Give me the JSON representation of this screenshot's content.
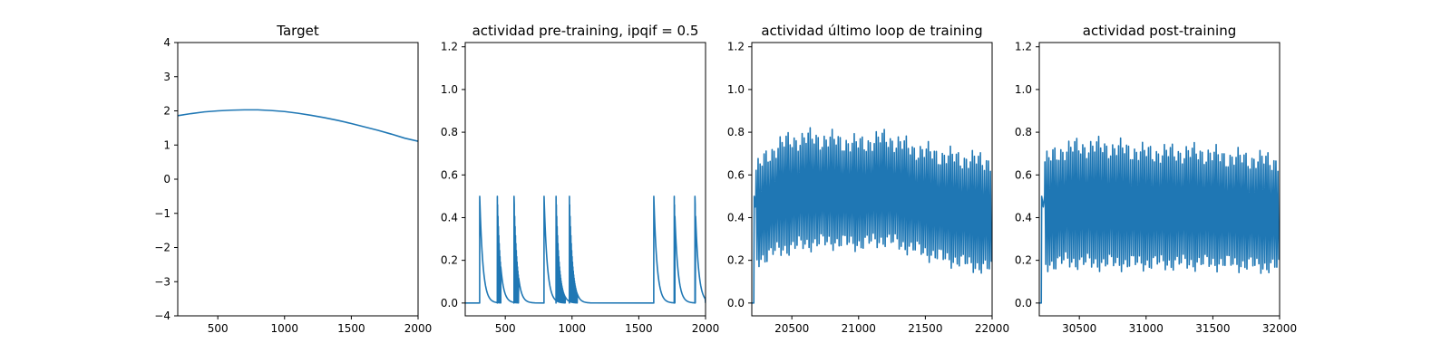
{
  "figure": {
    "line_color": "#1f77b4",
    "axes_color": "#000000"
  },
  "chart_data": [
    {
      "type": "line",
      "title": "Target",
      "xlabel": "",
      "ylabel": "",
      "xlim": [
        200,
        2000
      ],
      "ylim": [
        -4,
        4
      ],
      "xticks": [
        500,
        1000,
        1500,
        2000
      ],
      "yticks": [
        -4,
        -3,
        -2,
        -1,
        0,
        1,
        2,
        3,
        4
      ],
      "grid": false,
      "series": [
        {
          "x": [
            200,
            300,
            400,
            500,
            600,
            700,
            750,
            800,
            900,
            1000,
            1100,
            1200,
            1300,
            1400,
            1500,
            1600,
            1700,
            1800,
            1900,
            2000
          ],
          "y": [
            1.86,
            1.92,
            1.97,
            2.0,
            2.02,
            2.03,
            2.03,
            2.03,
            2.01,
            1.98,
            1.93,
            1.87,
            1.8,
            1.72,
            1.63,
            1.53,
            1.43,
            1.32,
            1.2,
            1.11
          ]
        }
      ]
    },
    {
      "type": "line",
      "title": "actividad pre-training, ipqif = 0.5",
      "xlabel": "",
      "ylabel": "",
      "xlim": [
        200,
        2000
      ],
      "ylim": [
        -0.06,
        1.22
      ],
      "xticks": [
        500,
        1000,
        1500,
        2000
      ],
      "yticks": [
        0.0,
        0.2,
        0.4,
        0.6,
        0.8,
        1.0,
        1.2
      ],
      "grid": false,
      "series": [
        {
          "spike_times": [
            308,
            440,
            565,
            790,
            880,
            980,
            1612,
            1765,
            1920
          ],
          "spike_peak": 0.5,
          "decay": 24,
          "baseline": 0.0
        }
      ]
    },
    {
      "type": "line",
      "title": "actividad último loop de training",
      "xlabel": "",
      "ylabel": "",
      "xlim": [
        20200,
        22000
      ],
      "ylim": [
        -0.06,
        1.22
      ],
      "xticks": [
        20500,
        21000,
        21500,
        22000
      ],
      "yticks": [
        0.0,
        0.2,
        0.4,
        0.6,
        0.8,
        1.0,
        1.2
      ],
      "grid": false,
      "series": [
        {
          "oscillation_start": 20230,
          "oscillation_end": 22000,
          "cycles": 118,
          "lead_in": [
            [
              20200,
              0.0
            ],
            [
              20215,
              0.0
            ],
            [
              20218,
              0.5
            ],
            [
              20225,
              0.45
            ],
            [
              20230,
              0.5
            ]
          ],
          "envelope_x": [
            20230,
            20400,
            20600,
            20800,
            21000,
            21200,
            21400,
            21600,
            21800,
            22000
          ],
          "envelope_max": [
            0.62,
            0.74,
            0.77,
            0.76,
            0.74,
            0.77,
            0.72,
            0.69,
            0.67,
            0.66
          ],
          "envelope_min": [
            0.2,
            0.25,
            0.28,
            0.29,
            0.28,
            0.3,
            0.26,
            0.22,
            0.19,
            0.16
          ]
        }
      ]
    },
    {
      "type": "line",
      "title": "actividad post-training",
      "xlabel": "",
      "ylabel": "",
      "xlim": [
        30200,
        32000
      ],
      "ylim": [
        -0.06,
        1.22
      ],
      "xticks": [
        30500,
        31000,
        31500,
        32000
      ],
      "yticks": [
        0.0,
        0.2,
        0.4,
        0.6,
        0.8,
        1.0,
        1.2
      ],
      "grid": false,
      "series": [
        {
          "oscillation_start": 30240,
          "oscillation_end": 32000,
          "cycles": 118,
          "lead_in": [
            [
              30200,
              0.0
            ],
            [
              30215,
              0.0
            ],
            [
              30218,
              0.5
            ],
            [
              30230,
              0.45
            ],
            [
              30240,
              0.5
            ]
          ],
          "envelope_x": [
            30240,
            30400,
            30600,
            30800,
            31000,
            31200,
            31400,
            31600,
            31800,
            32000
          ],
          "envelope_max": [
            0.66,
            0.72,
            0.73,
            0.72,
            0.7,
            0.7,
            0.7,
            0.68,
            0.67,
            0.66
          ],
          "envelope_min": [
            0.18,
            0.2,
            0.19,
            0.19,
            0.19,
            0.19,
            0.19,
            0.19,
            0.18,
            0.17
          ]
        }
      ]
    }
  ]
}
